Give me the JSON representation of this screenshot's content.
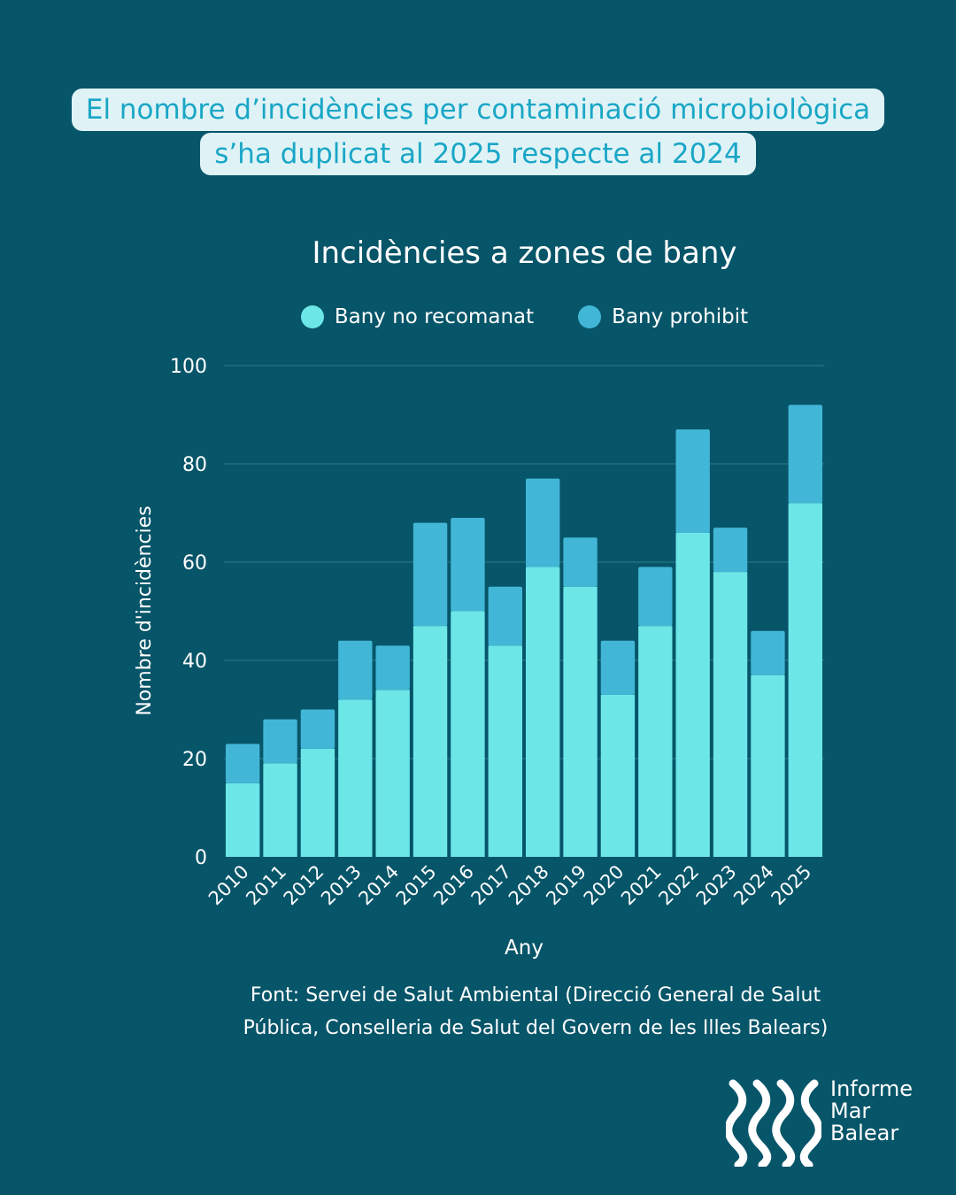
{
  "headline": {
    "line1": "El nombre d’incidències per contaminació microbiològica",
    "line2": "s’ha duplicat al 2025 respecte al 2024"
  },
  "chart_data": {
    "type": "bar",
    "stacked": true,
    "title": "Incidències a zones de bany",
    "xlabel": "Any",
    "ylabel": "Nombre d'incidències",
    "ylim": [
      0,
      100
    ],
    "yticks": [
      0,
      20,
      40,
      60,
      80,
      100
    ],
    "grid": true,
    "legend_position": "top-center",
    "categories": [
      "2010",
      "2011",
      "2012",
      "2013",
      "2014",
      "2015",
      "2016",
      "2017",
      "2018",
      "2019",
      "2020",
      "2021",
      "2022",
      "2023",
      "2024",
      "2025"
    ],
    "series": [
      {
        "name": "Bany no recomanat",
        "color": "#6de6e8",
        "values": [
          15,
          19,
          22,
          32,
          34,
          47,
          50,
          43,
          59,
          55,
          33,
          47,
          66,
          58,
          37,
          72
        ]
      },
      {
        "name": "Bany prohibit",
        "color": "#42b6d6",
        "values": [
          8,
          9,
          8,
          12,
          9,
          21,
          19,
          12,
          18,
          10,
          11,
          12,
          21,
          9,
          9,
          20
        ]
      }
    ]
  },
  "source": {
    "line1": "Font: Servei de Salut Ambiental (Direcció General de Salut",
    "line2": "Pública, Conselleria de Salut del Govern de les Illes Balears)"
  },
  "logo": {
    "line1": "Informe",
    "line2": "Mar",
    "line3": "Balear"
  }
}
